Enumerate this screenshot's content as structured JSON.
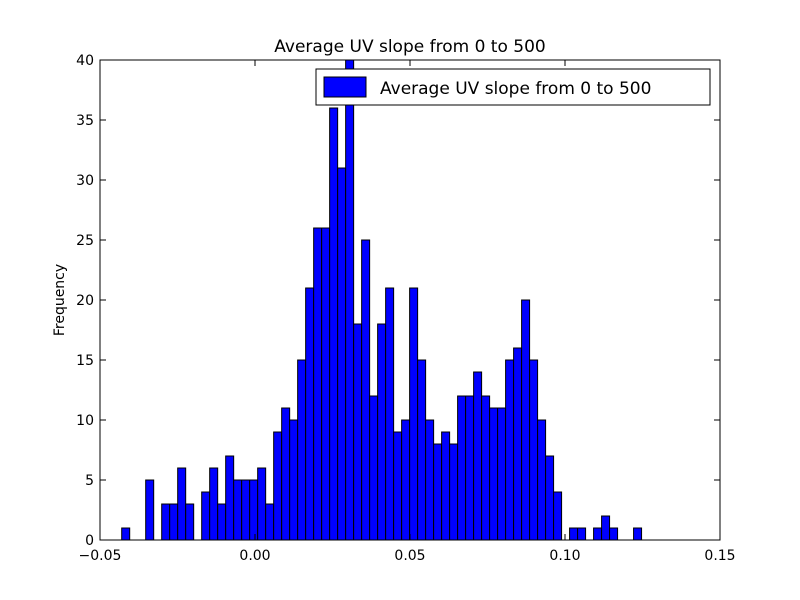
{
  "chart_data": {
    "type": "bar",
    "title": "Average UV slope from 0 to 500",
    "xlabel": "",
    "ylabel": "Frequency",
    "xlim": [
      -0.05,
      0.15
    ],
    "ylim": [
      0,
      40
    ],
    "xticks": [
      -0.05,
      0.0,
      0.05,
      0.1,
      0.15
    ],
    "xtick_labels": [
      "−0.05",
      "0.00",
      "0.05",
      "0.10",
      "0.15"
    ],
    "yticks": [
      0,
      5,
      10,
      15,
      20,
      25,
      30,
      35,
      40
    ],
    "ytick_labels": [
      "0",
      "5",
      "10",
      "15",
      "20",
      "25",
      "30",
      "35",
      "40"
    ],
    "bin_start": -0.043,
    "bin_width": 0.00258,
    "values": [
      1,
      0,
      0,
      5,
      0,
      3,
      3,
      6,
      3,
      0,
      4,
      6,
      3,
      7,
      5,
      5,
      5,
      6,
      3,
      9,
      11,
      10,
      15,
      21,
      26,
      26,
      36,
      31,
      40,
      18,
      25,
      12,
      18,
      21,
      9,
      10,
      21,
      15,
      10,
      8,
      9,
      8,
      12,
      12,
      14,
      12,
      11,
      11,
      15,
      16,
      20,
      15,
      10,
      7,
      4,
      0,
      1,
      1,
      0,
      1,
      2,
      1,
      0,
      0,
      1
    ],
    "legend": {
      "label": "Average UV slope from 0 to 500",
      "placement": "upper-right"
    },
    "grid": false,
    "bar_color": "#0000ff",
    "edge_color": "#000000"
  }
}
